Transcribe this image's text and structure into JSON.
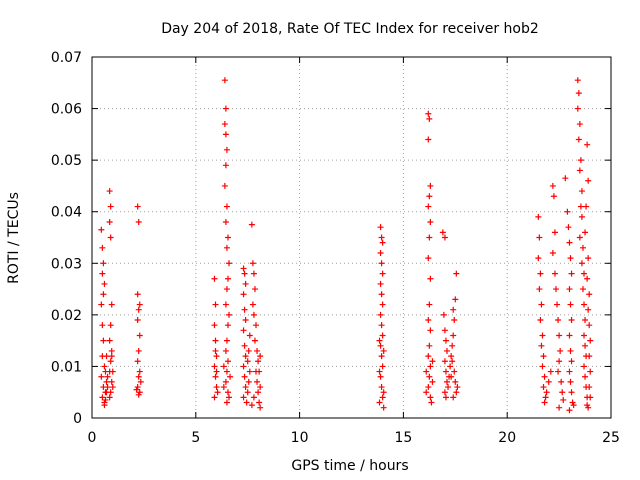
{
  "chart_data": {
    "type": "scatter",
    "title": "Day 204 of 2018, Rate Of TEC Index for receiver hob2",
    "xlabel": "GPS time / hours",
    "ylabel": "ROTI / TECUs",
    "xlim": [
      0,
      25
    ],
    "ylim": [
      0,
      0.07
    ],
    "x_ticks": [
      0,
      5,
      10,
      15,
      20,
      25
    ],
    "x_tick_labels": [
      "0",
      "5",
      "10",
      "15",
      "20",
      "25"
    ],
    "y_ticks": [
      0,
      0.01,
      0.02,
      0.03,
      0.04,
      0.05,
      0.06,
      0.07
    ],
    "y_tick_labels": [
      "0",
      "0.01",
      "0.02",
      "0.03",
      "0.04",
      "0.05",
      "0.06",
      "0.07"
    ],
    "grid": true,
    "marker": "+",
    "marker_color": "#ff0000",
    "series": [
      {
        "points": [
          [
            0.45,
            0.0365
          ],
          [
            0.5,
            0.033
          ],
          [
            0.55,
            0.03
          ],
          [
            0.5,
            0.028
          ],
          [
            0.6,
            0.026
          ],
          [
            0.55,
            0.024
          ],
          [
            0.45,
            0.022
          ],
          [
            0.5,
            0.018
          ],
          [
            0.55,
            0.015
          ],
          [
            0.5,
            0.012
          ],
          [
            0.6,
            0.01
          ],
          [
            0.45,
            0.008
          ],
          [
            0.55,
            0.006
          ],
          [
            0.5,
            0.004
          ],
          [
            0.6,
            0.003
          ],
          [
            0.65,
            0.005
          ],
          [
            0.7,
            0.007
          ],
          [
            0.65,
            0.009
          ],
          [
            0.7,
            0.012
          ],
          [
            0.75,
            0.008
          ],
          [
            0.7,
            0.005
          ],
          [
            0.65,
            0.0035
          ],
          [
            0.75,
            0.006
          ],
          [
            0.6,
            0.0025
          ],
          [
            0.85,
            0.044
          ],
          [
            0.9,
            0.041
          ],
          [
            0.85,
            0.038
          ],
          [
            0.9,
            0.035
          ],
          [
            0.95,
            0.022
          ],
          [
            0.9,
            0.018
          ],
          [
            0.85,
            0.015
          ],
          [
            0.95,
            0.013
          ],
          [
            0.9,
            0.011
          ],
          [
            0.85,
            0.009
          ],
          [
            0.95,
            0.007
          ],
          [
            0.9,
            0.005
          ],
          [
            0.85,
            0.004
          ],
          [
            1.0,
            0.006
          ],
          [
            1.0,
            0.009
          ],
          [
            0.95,
            0.012
          ],
          [
            2.2,
            0.041
          ],
          [
            2.25,
            0.038
          ],
          [
            2.2,
            0.024
          ],
          [
            2.3,
            0.022
          ],
          [
            2.25,
            0.021
          ],
          [
            2.2,
            0.019
          ],
          [
            2.3,
            0.016
          ],
          [
            2.25,
            0.013
          ],
          [
            2.2,
            0.011
          ],
          [
            2.3,
            0.009
          ],
          [
            2.25,
            0.008
          ],
          [
            2.2,
            0.006
          ],
          [
            2.3,
            0.005
          ],
          [
            2.25,
            0.0045
          ],
          [
            2.35,
            0.007
          ],
          [
            2.15,
            0.0055
          ],
          [
            5.9,
            0.027
          ],
          [
            5.95,
            0.022
          ],
          [
            5.9,
            0.018
          ],
          [
            5.95,
            0.015
          ],
          [
            6.0,
            0.012
          ],
          [
            5.9,
            0.01
          ],
          [
            5.95,
            0.008
          ],
          [
            6.0,
            0.006
          ],
          [
            5.9,
            0.004
          ],
          [
            6.05,
            0.005
          ],
          [
            6.0,
            0.009
          ],
          [
            5.95,
            0.013
          ],
          [
            6.4,
            0.0655
          ],
          [
            6.45,
            0.06
          ],
          [
            6.4,
            0.057
          ],
          [
            6.45,
            0.055
          ],
          [
            6.5,
            0.052
          ],
          [
            6.45,
            0.049
          ],
          [
            6.4,
            0.045
          ],
          [
            6.5,
            0.041
          ],
          [
            6.45,
            0.038
          ],
          [
            6.55,
            0.035
          ],
          [
            6.5,
            0.033
          ],
          [
            6.6,
            0.03
          ],
          [
            6.55,
            0.027
          ],
          [
            6.5,
            0.025
          ],
          [
            6.45,
            0.022
          ],
          [
            6.6,
            0.02
          ],
          [
            6.55,
            0.018
          ],
          [
            6.5,
            0.015
          ],
          [
            6.45,
            0.013
          ],
          [
            6.55,
            0.011
          ],
          [
            6.5,
            0.009
          ],
          [
            6.45,
            0.007
          ],
          [
            6.55,
            0.005
          ],
          [
            6.5,
            0.003
          ],
          [
            6.6,
            0.004
          ],
          [
            6.35,
            0.006
          ],
          [
            6.65,
            0.008
          ],
          [
            6.35,
            0.01
          ],
          [
            7.3,
            0.029
          ],
          [
            7.35,
            0.028
          ],
          [
            7.4,
            0.026
          ],
          [
            7.3,
            0.024
          ],
          [
            7.35,
            0.021
          ],
          [
            7.4,
            0.019
          ],
          [
            7.3,
            0.017
          ],
          [
            7.35,
            0.014
          ],
          [
            7.4,
            0.012
          ],
          [
            7.3,
            0.01
          ],
          [
            7.35,
            0.008
          ],
          [
            7.4,
            0.006
          ],
          [
            7.3,
            0.004
          ],
          [
            7.45,
            0.003
          ],
          [
            7.5,
            0.005
          ],
          [
            7.55,
            0.007
          ],
          [
            7.6,
            0.009
          ],
          [
            7.5,
            0.011
          ],
          [
            7.55,
            0.013
          ],
          [
            7.6,
            0.016
          ],
          [
            7.7,
            0.0375
          ],
          [
            7.75,
            0.03
          ],
          [
            7.8,
            0.028
          ],
          [
            7.85,
            0.025
          ],
          [
            7.75,
            0.022
          ],
          [
            7.8,
            0.02
          ],
          [
            7.9,
            0.018
          ],
          [
            7.85,
            0.015
          ],
          [
            7.95,
            0.013
          ],
          [
            8.0,
            0.011
          ],
          [
            7.9,
            0.009
          ],
          [
            7.95,
            0.007
          ],
          [
            8.0,
            0.005
          ],
          [
            8.05,
            0.003
          ],
          [
            8.1,
            0.002
          ],
          [
            7.7,
            0.0025
          ],
          [
            7.8,
            0.004
          ],
          [
            8.1,
            0.006
          ],
          [
            8.05,
            0.009
          ],
          [
            8.1,
            0.012
          ],
          [
            13.9,
            0.037
          ],
          [
            13.95,
            0.035
          ],
          [
            14.0,
            0.034
          ],
          [
            13.9,
            0.032
          ],
          [
            13.95,
            0.03
          ],
          [
            14.0,
            0.028
          ],
          [
            13.9,
            0.026
          ],
          [
            13.95,
            0.024
          ],
          [
            14.0,
            0.022
          ],
          [
            13.9,
            0.02
          ],
          [
            13.95,
            0.018
          ],
          [
            14.0,
            0.016
          ],
          [
            13.9,
            0.014
          ],
          [
            13.95,
            0.012
          ],
          [
            14.0,
            0.01
          ],
          [
            13.9,
            0.008
          ],
          [
            13.95,
            0.006
          ],
          [
            14.0,
            0.004
          ],
          [
            14.05,
            0.002
          ],
          [
            13.85,
            0.003
          ],
          [
            14.05,
            0.005
          ],
          [
            13.85,
            0.009
          ],
          [
            14.05,
            0.013
          ],
          [
            13.85,
            0.015
          ],
          [
            16.2,
            0.059
          ],
          [
            16.25,
            0.058
          ],
          [
            16.2,
            0.054
          ],
          [
            16.3,
            0.045
          ],
          [
            16.25,
            0.043
          ],
          [
            16.2,
            0.041
          ],
          [
            16.3,
            0.038
          ],
          [
            16.25,
            0.035
          ],
          [
            16.2,
            0.031
          ],
          [
            16.3,
            0.027
          ],
          [
            16.25,
            0.022
          ],
          [
            16.2,
            0.019
          ],
          [
            16.3,
            0.017
          ],
          [
            16.25,
            0.014
          ],
          [
            16.2,
            0.012
          ],
          [
            16.3,
            0.01
          ],
          [
            16.25,
            0.008
          ],
          [
            16.2,
            0.006
          ],
          [
            16.3,
            0.004
          ],
          [
            16.35,
            0.003
          ],
          [
            16.1,
            0.005
          ],
          [
            16.4,
            0.007
          ],
          [
            16.1,
            0.009
          ],
          [
            16.4,
            0.011
          ],
          [
            16.9,
            0.036
          ],
          [
            17.0,
            0.035
          ],
          [
            16.95,
            0.02
          ],
          [
            17.0,
            0.017
          ],
          [
            17.05,
            0.015
          ],
          [
            17.1,
            0.013
          ],
          [
            17.0,
            0.011
          ],
          [
            17.05,
            0.009
          ],
          [
            17.1,
            0.007
          ],
          [
            17.0,
            0.005
          ],
          [
            17.05,
            0.004
          ],
          [
            17.15,
            0.006
          ],
          [
            17.2,
            0.008
          ],
          [
            17.25,
            0.01
          ],
          [
            17.3,
            0.012
          ],
          [
            17.35,
            0.014
          ],
          [
            17.4,
            0.016
          ],
          [
            17.45,
            0.019
          ],
          [
            17.5,
            0.023
          ],
          [
            17.55,
            0.028
          ],
          [
            17.4,
            0.021
          ],
          [
            17.35,
            0.011
          ],
          [
            17.45,
            0.009
          ],
          [
            17.5,
            0.007
          ],
          [
            17.55,
            0.005
          ],
          [
            17.4,
            0.004
          ],
          [
            17.6,
            0.006
          ],
          [
            17.3,
            0.008
          ],
          [
            21.5,
            0.039
          ],
          [
            21.55,
            0.035
          ],
          [
            21.5,
            0.031
          ],
          [
            21.6,
            0.028
          ],
          [
            21.55,
            0.025
          ],
          [
            21.65,
            0.022
          ],
          [
            21.6,
            0.019
          ],
          [
            21.7,
            0.016
          ],
          [
            21.65,
            0.014
          ],
          [
            21.75,
            0.012
          ],
          [
            21.7,
            0.01
          ],
          [
            21.8,
            0.008
          ],
          [
            21.75,
            0.006
          ],
          [
            21.85,
            0.004
          ],
          [
            21.8,
            0.003
          ],
          [
            21.9,
            0.005
          ],
          [
            22.0,
            0.007
          ],
          [
            22.1,
            0.009
          ],
          [
            22.2,
            0.045
          ],
          [
            22.25,
            0.043
          ],
          [
            22.3,
            0.036
          ],
          [
            22.2,
            0.032
          ],
          [
            22.3,
            0.028
          ],
          [
            22.35,
            0.025
          ],
          [
            22.4,
            0.022
          ],
          [
            22.45,
            0.019
          ],
          [
            22.5,
            0.016
          ],
          [
            22.55,
            0.013
          ],
          [
            22.5,
            0.011
          ],
          [
            22.45,
            0.009
          ],
          [
            22.6,
            0.007
          ],
          [
            22.65,
            0.005
          ],
          [
            22.7,
            0.0035
          ],
          [
            22.5,
            0.002
          ],
          [
            22.8,
            0.0465
          ],
          [
            22.9,
            0.04
          ],
          [
            22.95,
            0.037
          ],
          [
            23.0,
            0.034
          ],
          [
            23.05,
            0.031
          ],
          [
            23.1,
            0.028
          ],
          [
            23.0,
            0.025
          ],
          [
            23.05,
            0.022
          ],
          [
            23.1,
            0.019
          ],
          [
            23.0,
            0.016
          ],
          [
            23.05,
            0.013
          ],
          [
            23.1,
            0.011
          ],
          [
            23.0,
            0.009
          ],
          [
            23.05,
            0.007
          ],
          [
            23.1,
            0.005
          ],
          [
            23.15,
            0.003
          ],
          [
            23.0,
            0.0015
          ],
          [
            23.2,
            0.0025
          ],
          [
            23.4,
            0.0655
          ],
          [
            23.45,
            0.063
          ],
          [
            23.4,
            0.06
          ],
          [
            23.5,
            0.057
          ],
          [
            23.45,
            0.054
          ],
          [
            23.55,
            0.05
          ],
          [
            23.5,
            0.048
          ],
          [
            23.6,
            0.044
          ],
          [
            23.55,
            0.041
          ],
          [
            23.6,
            0.039
          ],
          [
            23.5,
            0.035
          ],
          [
            23.65,
            0.033
          ],
          [
            23.6,
            0.03
          ],
          [
            23.7,
            0.028
          ],
          [
            23.65,
            0.025
          ],
          [
            23.7,
            0.022
          ],
          [
            23.75,
            0.019
          ],
          [
            23.7,
            0.016
          ],
          [
            23.75,
            0.014
          ],
          [
            23.8,
            0.012
          ],
          [
            23.7,
            0.01
          ],
          [
            23.75,
            0.008
          ],
          [
            23.8,
            0.006
          ],
          [
            23.85,
            0.004
          ],
          [
            23.9,
            0.002
          ],
          [
            23.85,
            0.053
          ],
          [
            23.9,
            0.046
          ],
          [
            23.8,
            0.041
          ],
          [
            23.75,
            0.036
          ],
          [
            23.9,
            0.031
          ],
          [
            23.85,
            0.027
          ],
          [
            23.95,
            0.024
          ],
          [
            23.9,
            0.021
          ],
          [
            23.95,
            0.018
          ],
          [
            24.0,
            0.015
          ],
          [
            23.95,
            0.012
          ],
          [
            24.0,
            0.009
          ],
          [
            23.95,
            0.006
          ],
          [
            24.0,
            0.004
          ],
          [
            23.85,
            0.0025
          ]
        ]
      }
    ]
  }
}
